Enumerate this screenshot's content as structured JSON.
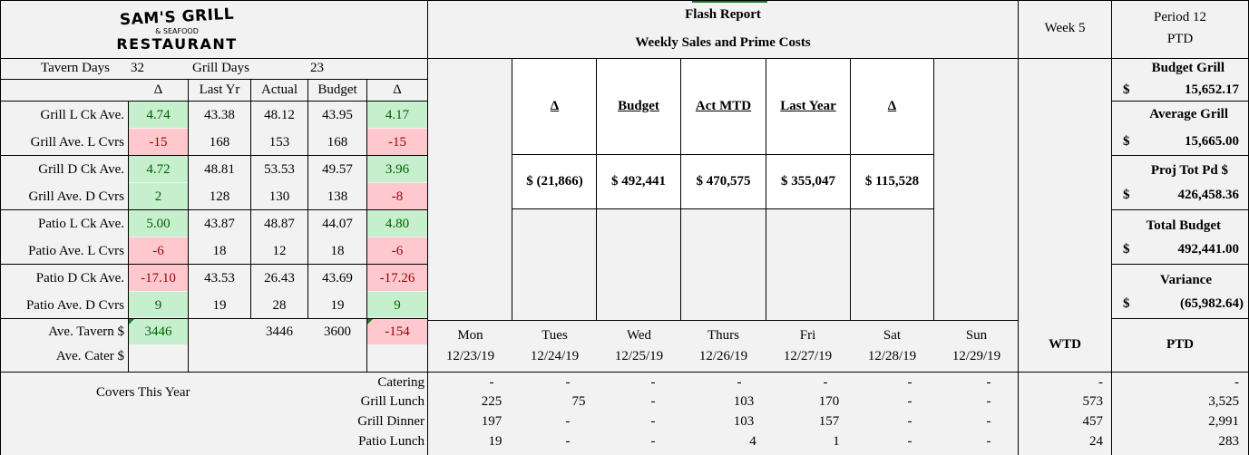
{
  "logo": {
    "line1": "SAM'S GRILL",
    "line2": "& SEAFOOD",
    "line3": "RESTAURANT"
  },
  "header": {
    "title": "Flash Report",
    "subtitle": "Weekly Sales and Prime Costs",
    "week": "Week 5",
    "period": "Period 12",
    "ptd": "PTD"
  },
  "days_info": {
    "tavern_label": "Tavern Days",
    "tavern_value": "32",
    "grill_label": "Grill Days",
    "grill_value": "23"
  },
  "metrics": {
    "columns": [
      "Δ",
      "Last Yr",
      "Actual",
      "Budget",
      "Δ"
    ],
    "rows": [
      {
        "label": "Grill L Ck Ave.",
        "d1": "4.74",
        "last_yr": "43.38",
        "actual": "48.12",
        "budget": "43.95",
        "d2": "4.17"
      },
      {
        "label": "Grill Ave. L Cvrs",
        "d1": "-15",
        "last_yr": "168",
        "actual": "153",
        "budget": "168",
        "d2": "-15"
      },
      {
        "label": "Grill D Ck Ave.",
        "d1": "4.72",
        "last_yr": "48.81",
        "actual": "53.53",
        "budget": "49.57",
        "d2": "3.96"
      },
      {
        "label": "Grill Ave. D Cvrs",
        "d1": "2",
        "last_yr": "128",
        "actual": "130",
        "budget": "138",
        "d2": "-8"
      },
      {
        "label": "Patio L Ck Ave.",
        "d1": "5.00",
        "last_yr": "43.87",
        "actual": "48.87",
        "budget": "44.07",
        "d2": "4.80"
      },
      {
        "label": "Patio Ave. L Cvrs",
        "d1": "-6",
        "last_yr": "18",
        "actual": "12",
        "budget": "18",
        "d2": "-6"
      },
      {
        "label": "Patio D Ck Ave.",
        "d1": "-17.10",
        "last_yr": "43.53",
        "actual": "26.43",
        "budget": "43.69",
        "d2": "-17.26"
      },
      {
        "label": "Patio Ave. D Cvrs",
        "d1": "9",
        "last_yr": "19",
        "actual": "28",
        "budget": "19",
        "d2": "9"
      }
    ],
    "tavern": {
      "label": "Ave. Tavern $",
      "d1": "3446",
      "actual": "3446",
      "budget": "3600",
      "d2": "-154"
    },
    "cater": {
      "label": "Ave. Cater $"
    }
  },
  "summary": {
    "headers": [
      "Δ",
      "Budget",
      "Act MTD",
      "Last Year",
      "Δ"
    ],
    "values": [
      "$ (21,866)",
      "$ 492,441",
      "$ 470,575",
      "$ 355,047",
      "$ 115,528"
    ]
  },
  "right_panel": [
    {
      "label": "Budget Grill",
      "currency": "$",
      "value": "15,652.17"
    },
    {
      "label": "Average Grill",
      "currency": "$",
      "value": "15,665.00"
    },
    {
      "label": "Proj Tot Pd $",
      "currency": "$",
      "value": "426,458.36"
    },
    {
      "label": "Total Budget",
      "currency": "$",
      "value": "492,441.00"
    },
    {
      "label": "Variance",
      "currency": "$",
      "value": "(65,982.64)"
    }
  ],
  "days": [
    {
      "name": "Mon",
      "date": "12/23/19"
    },
    {
      "name": "Tues",
      "date": "12/24/19"
    },
    {
      "name": "Wed",
      "date": "12/25/19"
    },
    {
      "name": "Thurs",
      "date": "12/26/19"
    },
    {
      "name": "Fri",
      "date": "12/27/19"
    },
    {
      "name": "Sat",
      "date": "12/28/19"
    },
    {
      "name": "Sun",
      "date": "12/29/19"
    }
  ],
  "totals_headers": {
    "wtd": "WTD",
    "ptd": "PTD"
  },
  "covers": {
    "title": "Covers This Year",
    "rows": [
      {
        "label": "Catering",
        "values": [
          "-",
          "-",
          "-",
          "-",
          "-",
          "-",
          "-"
        ],
        "wtd": "-",
        "ptd": "-"
      },
      {
        "label": "Grill Lunch",
        "values": [
          "225",
          "75",
          "-",
          "103",
          "170",
          "-",
          "-"
        ],
        "wtd": "573",
        "ptd": "3,525"
      },
      {
        "label": "Grill Dinner",
        "values": [
          "197",
          "-",
          "-",
          "103",
          "157",
          "-",
          "-"
        ],
        "wtd": "457",
        "ptd": "2,991"
      },
      {
        "label": "Patio Lunch",
        "values": [
          "19",
          "-",
          "-",
          "4",
          "1",
          "-",
          "-"
        ],
        "wtd": "24",
        "ptd": "283"
      }
    ]
  }
}
